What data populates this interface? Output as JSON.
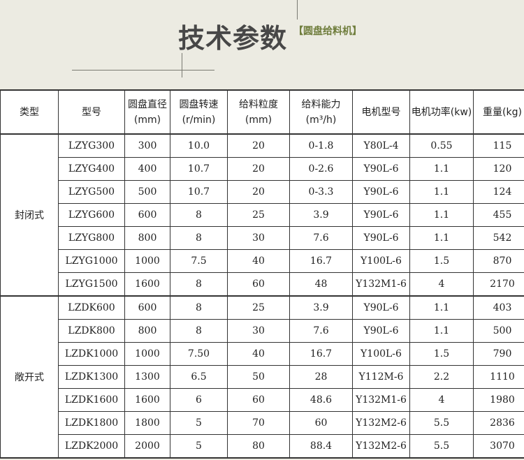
{
  "header": {
    "title": "技术参数",
    "subtitle": "【圆盘给料机】"
  },
  "table": {
    "columns": [
      "类型",
      "型号",
      "圆盘直径(mm)",
      "圆盘转速(r/min)",
      "给料粒度(mm)",
      "给料能力(m³/h)",
      "电机型号",
      "电机功率(kw)",
      "重量(kg)"
    ],
    "groups": [
      {
        "type": "封闭式",
        "rows": [
          [
            "LZYG300",
            "300",
            "10.0",
            "20",
            "0-1.8",
            "Y80L-4",
            "0.55",
            "115"
          ],
          [
            "LZYG400",
            "400",
            "10.7",
            "20",
            "0-2.6",
            "Y90L-6",
            "1.1",
            "120"
          ],
          [
            "LZYG500",
            "500",
            "10.7",
            "20",
            "0-3.3",
            "Y90L-6",
            "1.1",
            "124"
          ],
          [
            "LZYG600",
            "600",
            "8",
            "25",
            "3.9",
            "Y90L-6",
            "1.1",
            "455"
          ],
          [
            "LZYG800",
            "800",
            "8",
            "30",
            "7.6",
            "Y90L-6",
            "1.1",
            "542"
          ],
          [
            "LZYG1000",
            "1000",
            "7.5",
            "40",
            "16.7",
            "Y100L-6",
            "1.5",
            "870"
          ],
          [
            "LZYG1500",
            "1600",
            "8",
            "60",
            "48",
            "Y132M1-6",
            "4",
            "2170"
          ]
        ]
      },
      {
        "type": "敞开式",
        "rows": [
          [
            "LZDK600",
            "600",
            "8",
            "25",
            "3.9",
            "Y90L-6",
            "1.1",
            "403"
          ],
          [
            "LZDK800",
            "800",
            "8",
            "30",
            "7.6",
            "Y90L-6",
            "1.1",
            "500"
          ],
          [
            "LZDK1000",
            "1000",
            "7.50",
            "40",
            "16.7",
            "Y100L-6",
            "1.5",
            "790"
          ],
          [
            "LZDK1300",
            "1300",
            "6.5",
            "50",
            "28",
            "Y112M-6",
            "2.2",
            "1110"
          ],
          [
            "LZDK1600",
            "1600",
            "6",
            "60",
            "48.6",
            "Y132M1-6",
            "4",
            "1980"
          ],
          [
            "LZDK1800",
            "1800",
            "5",
            "70",
            "60",
            "Y132M2-6",
            "5.5",
            "2836"
          ],
          [
            "LZDK2000",
            "2000",
            "5",
            "80",
            "88.4",
            "Y132M2-6",
            "5.5",
            "3070"
          ]
        ]
      }
    ]
  }
}
